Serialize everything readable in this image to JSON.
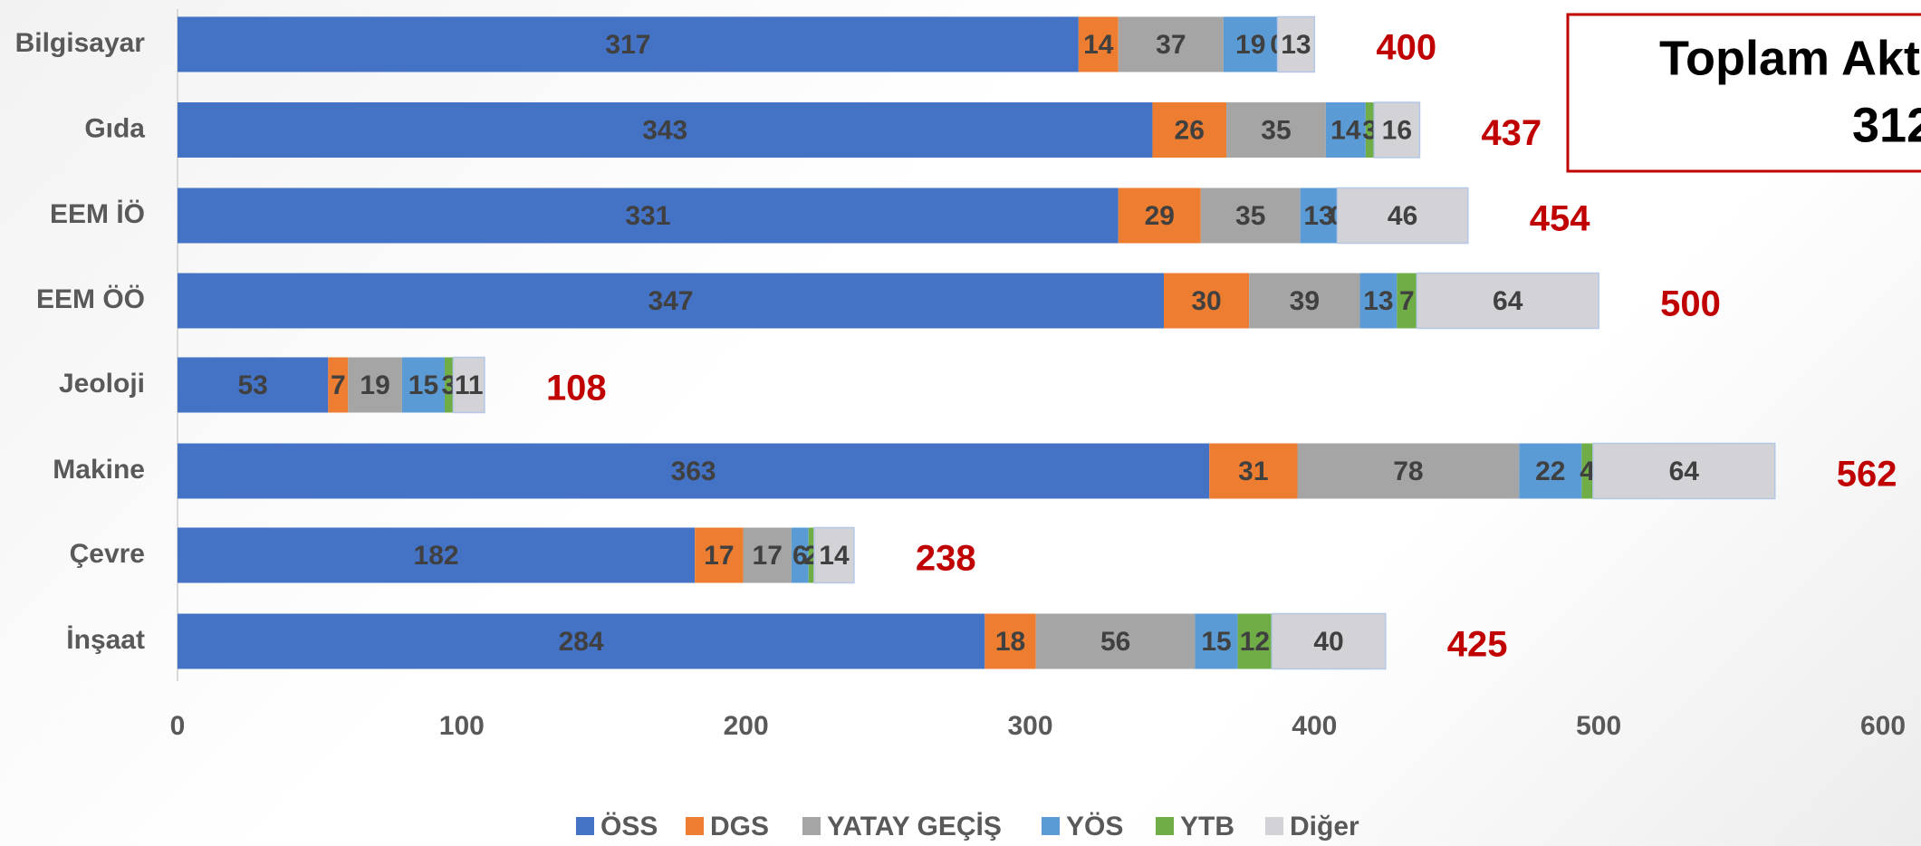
{
  "chart_data": {
    "type": "stacked_barh",
    "categories": [
      "Bilgisayar",
      "Gıda",
      "EEM İÖ",
      "EEM ÖÖ",
      "Jeoloji",
      "Makine",
      "Çevre",
      "İnşaat"
    ],
    "series": [
      {
        "name": "ÖSS",
        "color": "#4472c4",
        "values": [
          317,
          343,
          331,
          347,
          53,
          363,
          182,
          284
        ]
      },
      {
        "name": "DGS",
        "color": "#ed7d31",
        "values": [
          14,
          26,
          29,
          30,
          7,
          31,
          17,
          18
        ]
      },
      {
        "name": "YATAY GEÇİŞ",
        "color": "#a5a5a5",
        "values": [
          37,
          35,
          35,
          39,
          19,
          78,
          17,
          56
        ]
      },
      {
        "name": "YÖS",
        "color": "#5b9bd5",
        "values": [
          19,
          14,
          13,
          13,
          15,
          22,
          6,
          15
        ]
      },
      {
        "name": "YTB",
        "color": "#70ad47",
        "values": [
          0,
          3,
          0,
          7,
          3,
          4,
          2,
          12
        ]
      },
      {
        "name": "Diğer",
        "color": "#d3d2d6",
        "values": [
          13,
          16,
          46,
          64,
          11,
          64,
          14,
          40
        ]
      }
    ],
    "totals": [
      400,
      437,
      454,
      500,
      108,
      562,
      238,
      425
    ],
    "xlim": [
      0,
      600
    ],
    "xticks": [
      0,
      100,
      200,
      300,
      400,
      500,
      600
    ],
    "grid": false,
    "annotation": [
      "Toplam Akt",
      "312"
    ]
  }
}
